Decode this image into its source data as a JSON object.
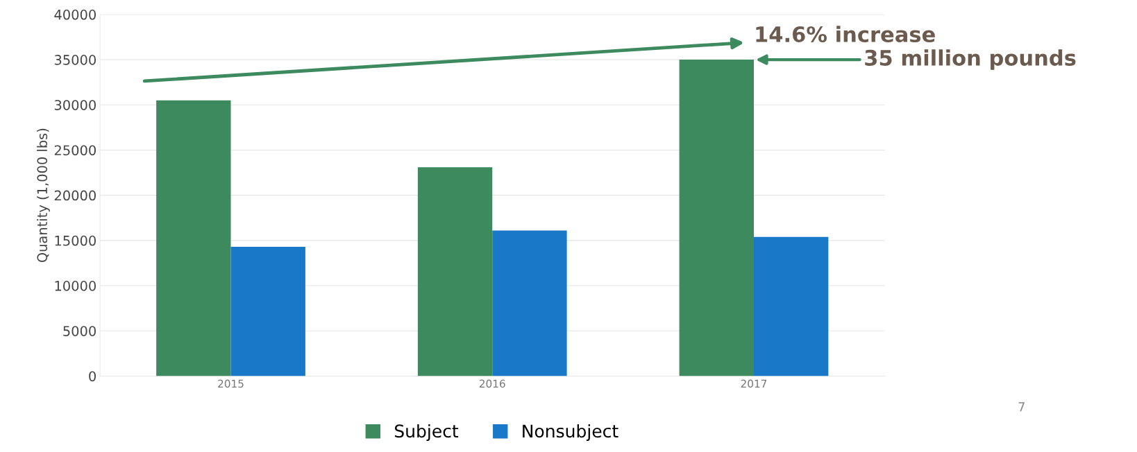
{
  "chart_data": {
    "type": "bar",
    "ylabel": "Quantity (1,000 lbs)",
    "categories": [
      "2015",
      "2016",
      "2017"
    ],
    "series": [
      {
        "name": "Subject",
        "color": "#3d8a5e",
        "values": [
          30500,
          23100,
          35000
        ]
      },
      {
        "name": "Nonsubject",
        "color": "#1a78c8",
        "values": [
          14300,
          16100,
          15400
        ]
      }
    ],
    "ylim": [
      0,
      40000
    ],
    "yticks": [
      0,
      5000,
      10000,
      15000,
      20000,
      25000,
      30000,
      35000,
      40000
    ],
    "grid": "y",
    "legend": "bottom",
    "annotations": [
      "14.6% increase",
      "35 million pounds",
      "7"
    ]
  }
}
